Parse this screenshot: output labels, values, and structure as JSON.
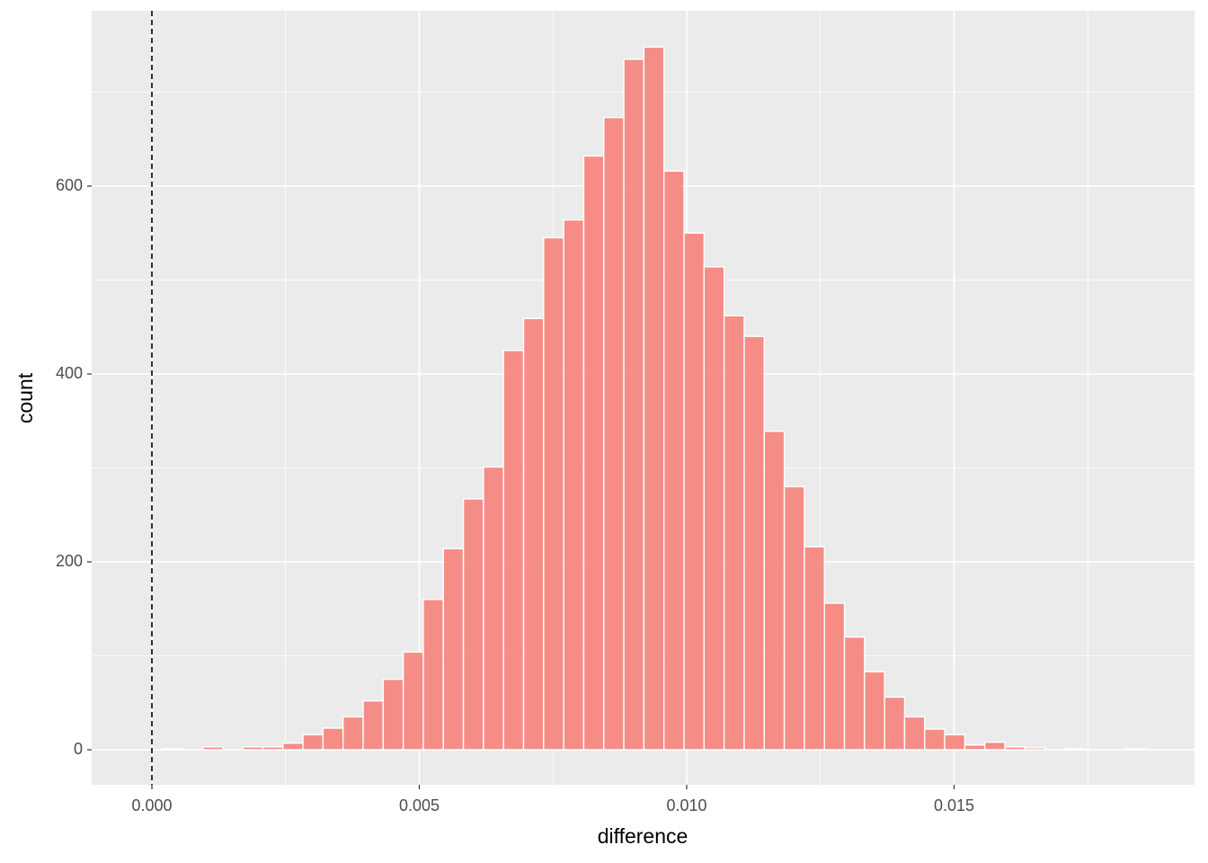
{
  "chart_data": {
    "type": "histogram",
    "x_label": "difference",
    "y_label": "count",
    "bins": [
      0.0002,
      0.000575,
      0.00095,
      0.001325,
      0.0017,
      0.002075,
      0.00245,
      0.002825,
      0.0032,
      0.003575,
      0.00395,
      0.004325,
      0.0047,
      0.005075,
      0.00545,
      0.005825,
      0.0062,
      0.006575,
      0.00695,
      0.007325,
      0.0077,
      0.008075,
      0.00845,
      0.008825,
      0.0092,
      0.009575,
      0.00995,
      0.010325,
      0.0107,
      0.011075,
      0.01145,
      0.011825,
      0.0122,
      0.012575,
      0.01295,
      0.013325,
      0.0137,
      0.014075,
      0.01445,
      0.014825,
      0.0152,
      0.015575,
      0.01595,
      0.016325,
      0.0167,
      0.017075,
      0.01745,
      0.017825,
      0.0182,
      0.018575
    ],
    "values": [
      1,
      0,
      3,
      0,
      3,
      3,
      7,
      16,
      23,
      35,
      52,
      75,
      104,
      160,
      214,
      267,
      301,
      425,
      459,
      545,
      564,
      632,
      673,
      735,
      748,
      616,
      550,
      514,
      462,
      440,
      339,
      280,
      216,
      156,
      120,
      83,
      56,
      35,
      22,
      16,
      5,
      8,
      3,
      2,
      0,
      1,
      0,
      0,
      1
    ],
    "color": "#F8766D",
    "alpha": 0.8,
    "vline": 0,
    "xlim": [
      -0.001126,
      0.019496
    ],
    "ylim": [
      -37.3,
      786.6
    ],
    "xticks": [
      {
        "value": 0,
        "label": "0.000"
      },
      {
        "value": 0.005,
        "label": "0.005"
      },
      {
        "value": 0.01,
        "label": "0.010"
      },
      {
        "value": 0.015,
        "label": "0.015"
      }
    ],
    "yticks": [
      0,
      200,
      400,
      600
    ],
    "grid": true
  }
}
